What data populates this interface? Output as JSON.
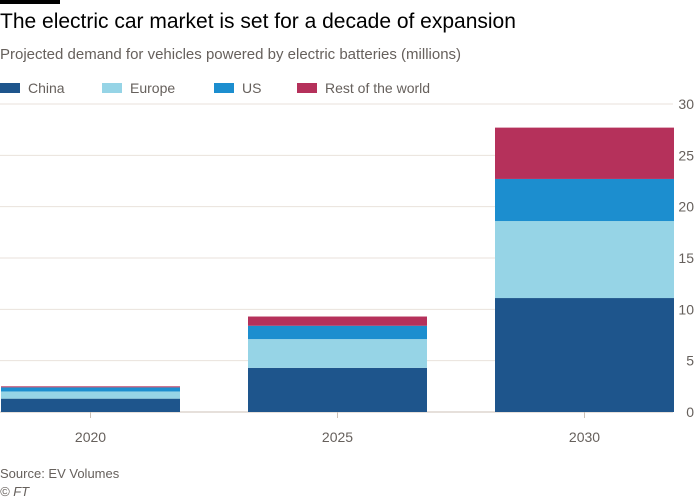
{
  "title": "The electric car market is set for a decade of expansion",
  "subtitle": "Projected demand for vehicles powered by electric batteries (millions)",
  "source": "Source: EV Volumes",
  "copyright": "© FT",
  "chart_data": {
    "type": "bar",
    "stacked": true,
    "title": "The electric car market is set for a decade of expansion",
    "subtitle": "Projected demand for vehicles powered by electric batteries (millions)",
    "xlabel": "",
    "ylabel": "",
    "categories": [
      "2020",
      "2025",
      "2030"
    ],
    "series": [
      {
        "name": "China",
        "color": "#1e558c",
        "values": [
          1.3,
          4.3,
          11.1
        ]
      },
      {
        "name": "Europe",
        "color": "#96d4e6",
        "values": [
          0.7,
          2.8,
          7.5
        ]
      },
      {
        "name": "US",
        "color": "#1c8ecf",
        "values": [
          0.4,
          1.3,
          4.1
        ]
      },
      {
        "name": "Rest of the world",
        "color": "#b5315b",
        "values": [
          0.1,
          0.9,
          5.0
        ]
      }
    ],
    "ylim": [
      0,
      30
    ],
    "yticks": [
      "0",
      "5",
      "10",
      "15",
      "20",
      "25",
      "30"
    ],
    "grid": true,
    "yaxis_position": "right",
    "legend": "top-left"
  }
}
